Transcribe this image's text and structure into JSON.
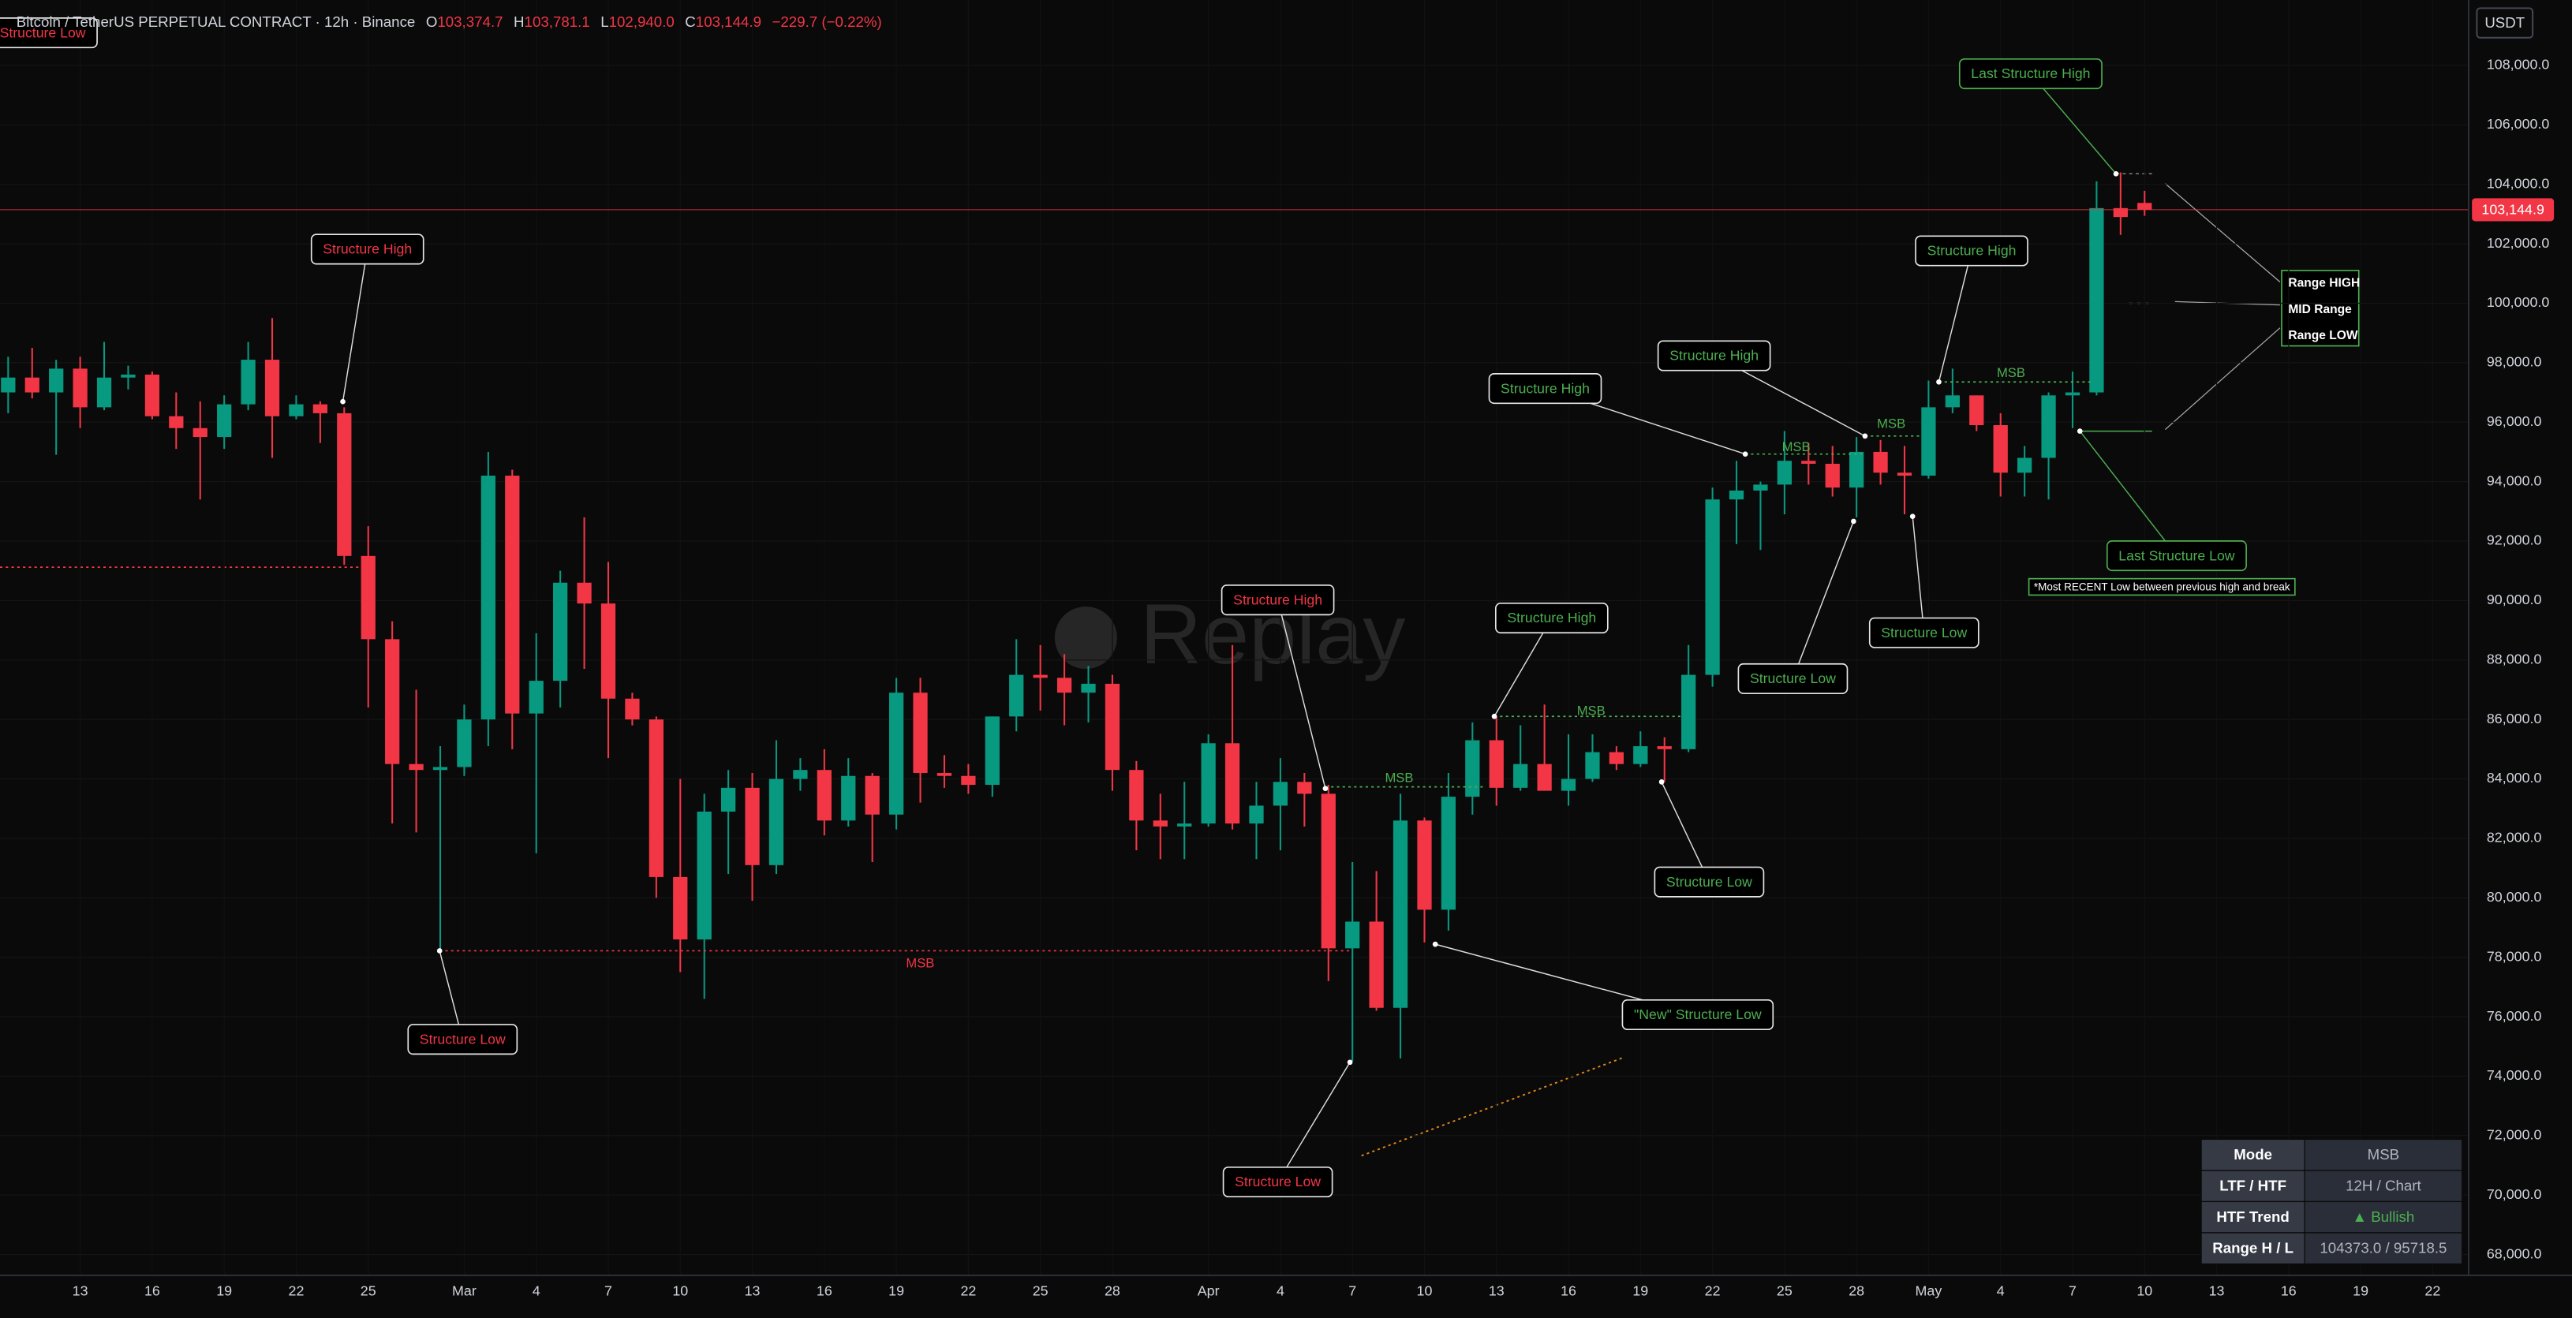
{
  "header": {
    "symbol": "Bitcoin / TetherUS PERPETUAL CONTRACT · 12h · Binance",
    "o_key": "O",
    "o": "103,374.7",
    "h_key": "H",
    "h": "103,781.1",
    "l_key": "L",
    "l": "102,940.0",
    "c_key": "C",
    "c": "103,144.9",
    "change": "−229.7 (−0.22%)"
  },
  "currency": "USDT",
  "watermark": "Replay",
  "chart_data": {
    "type": "candlestick",
    "up_color": "#089981",
    "down_color": "#f23645",
    "candles": [
      [
        97000,
        98200,
        96300,
        97500
      ],
      [
        97500,
        98500,
        96800,
        97000
      ],
      [
        97000,
        98100,
        94900,
        97800
      ],
      [
        97800,
        98200,
        95800,
        96500
      ],
      [
        96500,
        98700,
        96400,
        97500
      ],
      [
        97500,
        97900,
        97100,
        97600
      ],
      [
        97600,
        97700,
        96100,
        96200
      ],
      [
        96200,
        97000,
        95100,
        95800
      ],
      [
        95800,
        96700,
        93400,
        95500
      ],
      [
        95500,
        96900,
        95100,
        96600
      ],
      [
        96600,
        98700,
        96400,
        98100
      ],
      [
        98100,
        99500,
        94800,
        96200
      ],
      [
        96200,
        96900,
        96100,
        96600
      ],
      [
        96600,
        96700,
        95300,
        96300
      ],
      [
        96300,
        96500,
        91200,
        91500
      ],
      [
        91500,
        92500,
        86400,
        88700
      ],
      [
        88700,
        89300,
        82500,
        84500
      ],
      [
        84500,
        87000,
        82200,
        84300
      ],
      [
        84300,
        85100,
        78200,
        84400
      ],
      [
        84400,
        86500,
        84100,
        86000
      ],
      [
        86000,
        95000,
        85100,
        94200
      ],
      [
        94200,
        94400,
        85000,
        86200
      ],
      [
        86200,
        88900,
        81500,
        87300
      ],
      [
        87300,
        91000,
        86400,
        90600
      ],
      [
        90600,
        92800,
        87700,
        89900
      ],
      [
        89900,
        91300,
        84700,
        86700
      ],
      [
        86700,
        86900,
        85800,
        86000
      ],
      [
        86000,
        86100,
        80000,
        80700
      ],
      [
        80700,
        84000,
        77500,
        78600
      ],
      [
        78600,
        83500,
        76600,
        82900
      ],
      [
        82900,
        84300,
        80800,
        83700
      ],
      [
        83700,
        84200,
        79900,
        81100
      ],
      [
        81100,
        85300,
        80800,
        84000
      ],
      [
        84000,
        84700,
        83600,
        84300
      ],
      [
        84300,
        85000,
        82100,
        82600
      ],
      [
        82600,
        84700,
        82400,
        84100
      ],
      [
        84100,
        84200,
        81200,
        82800
      ],
      [
        82800,
        87400,
        82300,
        86900
      ],
      [
        86900,
        87400,
        83200,
        84200
      ],
      [
        84200,
        84800,
        83700,
        84100
      ],
      [
        84100,
        84500,
        83500,
        83800
      ],
      [
        83800,
        86100,
        83400,
        86100
      ],
      [
        86100,
        88700,
        85600,
        87500
      ],
      [
        87500,
        88500,
        86300,
        87400
      ],
      [
        87400,
        88200,
        85800,
        86900
      ],
      [
        86900,
        87800,
        85900,
        87200
      ],
      [
        87200,
        87500,
        83600,
        84300
      ],
      [
        84300,
        84600,
        81600,
        82600
      ],
      [
        82600,
        83500,
        81300,
        82400
      ],
      [
        82400,
        83900,
        81300,
        82500
      ],
      [
        82500,
        85500,
        82400,
        85200
      ],
      [
        85200,
        88500,
        82300,
        82500
      ],
      [
        82500,
        83900,
        81300,
        83100
      ],
      [
        83100,
        84700,
        81600,
        83900
      ],
      [
        83900,
        84200,
        82400,
        83500
      ],
      [
        83500,
        83800,
        77200,
        78300
      ],
      [
        78300,
        81200,
        74500,
        79200
      ],
      [
        79200,
        80900,
        76200,
        76300
      ],
      [
        76300,
        83500,
        74600,
        82600
      ],
      [
        82600,
        82700,
        78500,
        79600
      ],
      [
        79600,
        84200,
        78900,
        83400
      ],
      [
        83400,
        85900,
        82800,
        85300
      ],
      [
        85300,
        86100,
        83100,
        83700
      ],
      [
        83700,
        85800,
        83600,
        84500
      ],
      [
        84500,
        86500,
        83600,
        83600
      ],
      [
        83600,
        85500,
        83100,
        84000
      ],
      [
        84000,
        85500,
        83900,
        84900
      ],
      [
        84900,
        85100,
        84300,
        84500
      ],
      [
        84500,
        85600,
        84400,
        85100
      ],
      [
        85100,
        85400,
        83900,
        85000
      ],
      [
        85000,
        88500,
        84900,
        87500
      ],
      [
        87500,
        93800,
        87100,
        93400
      ],
      [
        93400,
        94700,
        91900,
        93700
      ],
      [
        93700,
        94000,
        91700,
        93900
      ],
      [
        93900,
        95700,
        92900,
        94700
      ],
      [
        94700,
        95300,
        93900,
        94600
      ],
      [
        94600,
        95200,
        93500,
        93800
      ],
      [
        93800,
        95500,
        92800,
        95000
      ],
      [
        95000,
        95400,
        93900,
        94300
      ],
      [
        94300,
        95200,
        92900,
        94200
      ],
      [
        94200,
        97400,
        94100,
        96500
      ],
      [
        96500,
        97800,
        96300,
        96900
      ],
      [
        96900,
        96900,
        95700,
        95900
      ],
      [
        95900,
        96300,
        93500,
        94300
      ],
      [
        94300,
        95200,
        93500,
        94800
      ],
      [
        94800,
        97000,
        93400,
        96900
      ],
      [
        96900,
        97700,
        95800,
        97000
      ],
      [
        97000,
        104100,
        96900,
        103200
      ],
      [
        103200,
        104400,
        102300,
        102900
      ],
      [
        103374.7,
        103781.1,
        102940,
        103144.9
      ]
    ],
    "xlim": [
      -0.34,
      102.5
    ],
    "xticks": [
      {
        "value": 3,
        "label": "13"
      },
      {
        "value": 6,
        "label": "16"
      },
      {
        "value": 9,
        "label": "19"
      },
      {
        "value": 12,
        "label": "22"
      },
      {
        "value": 15,
        "label": "25"
      },
      {
        "value": 19,
        "label": "Mar"
      },
      {
        "value": 22,
        "label": "4"
      },
      {
        "value": 25,
        "label": "7"
      },
      {
        "value": 28,
        "label": "10"
      },
      {
        "value": 31,
        "label": "13"
      },
      {
        "value": 34,
        "label": "16"
      },
      {
        "value": 37,
        "label": "19"
      },
      {
        "value": 40,
        "label": "22"
      },
      {
        "value": 43,
        "label": "25"
      },
      {
        "value": 46,
        "label": "28"
      },
      {
        "value": 50,
        "label": "Apr"
      },
      {
        "value": 53,
        "label": "4"
      },
      {
        "value": 56,
        "label": "7"
      },
      {
        "value": 59,
        "label": "10"
      },
      {
        "value": 62,
        "label": "13"
      },
      {
        "value": 65,
        "label": "16"
      },
      {
        "value": 68,
        "label": "19"
      },
      {
        "value": 71,
        "label": "22"
      },
      {
        "value": 74,
        "label": "25"
      },
      {
        "value": 77,
        "label": "28"
      },
      {
        "value": 80,
        "label": "May"
      },
      {
        "value": 83,
        "label": "4"
      },
      {
        "value": 86,
        "label": "7"
      },
      {
        "value": 89,
        "label": "10"
      },
      {
        "value": 92,
        "label": "13"
      },
      {
        "value": 95,
        "label": "16"
      },
      {
        "value": 98,
        "label": "19"
      },
      {
        "value": 101,
        "label": "22"
      }
    ],
    "ylim": [
      67300,
      110200
    ],
    "yticks": [
      {
        "value": 68000,
        "label": "68,000.0"
      },
      {
        "value": 70000,
        "label": "70,000.0"
      },
      {
        "value": 72000,
        "label": "72,000.0"
      },
      {
        "value": 74000,
        "label": "74,000.0"
      },
      {
        "value": 76000,
        "label": "76,000.0"
      },
      {
        "value": 78000,
        "label": "78,000.0"
      },
      {
        "value": 80000,
        "label": "80,000.0"
      },
      {
        "value": 82000,
        "label": "82,000.0"
      },
      {
        "value": 84000,
        "label": "84,000.0"
      },
      {
        "value": 86000,
        "label": "86,000.0"
      },
      {
        "value": 88000,
        "label": "88,000.0"
      },
      {
        "value": 90000,
        "label": "90,000.0"
      },
      {
        "value": 92000,
        "label": "92,000.0"
      },
      {
        "value": 94000,
        "label": "94,000.0"
      },
      {
        "value": 96000,
        "label": "96,000.0"
      },
      {
        "value": 98000,
        "label": "98,000.0"
      },
      {
        "value": 100000,
        "label": "100,000.0"
      },
      {
        "value": 102000,
        "label": "102,000.0"
      },
      {
        "value": 104000,
        "label": "104,000.0"
      },
      {
        "value": 106000,
        "label": "106,000.0"
      },
      {
        "value": 108000,
        "label": "108,000.0"
      }
    ],
    "grid": true,
    "last_price": 103144.9,
    "last_price_label": "103,144.9",
    "annotations": [
      {
        "text": "Structure Low",
        "color": "#f23645"
      },
      {
        "text": "Structure High",
        "color": "#f23645"
      },
      {
        "text": "Structure Low",
        "color": "#f23645"
      },
      {
        "text": "Structure High",
        "color": "#f23645"
      },
      {
        "text": "Structure Low",
        "color": "#f23645"
      },
      {
        "text": "Structure High",
        "color": "#4caf50"
      },
      {
        "text": "Structure Low",
        "color": "#4caf50"
      },
      {
        "text": "\"New\" Structure Low",
        "color": "#4caf50"
      },
      {
        "text": "Structure High",
        "color": "#4caf50"
      },
      {
        "text": "Structure High",
        "color": "#4caf50"
      },
      {
        "text": "Structure Low",
        "color": "#4caf50"
      },
      {
        "text": "Structure High",
        "color": "#4caf50"
      },
      {
        "text": "Structure Low",
        "color": "#4caf50"
      },
      {
        "text": "Last Structure High",
        "color": "#4caf50"
      },
      {
        "text": "Last Structure Low",
        "color": "#4caf50"
      },
      {
        "text": "*Most RECENT Low between previous high and break",
        "color": "#ffffff"
      }
    ],
    "msb_labels": [
      {
        "text": "MSB",
        "color": "#f23645"
      },
      {
        "text": "MSB",
        "color": "#4caf50"
      },
      {
        "text": "MSB",
        "color": "#4caf50"
      },
      {
        "text": "MSB",
        "color": "#4caf50"
      },
      {
        "text": "MSB",
        "color": "#4caf50"
      },
      {
        "text": "MSB",
        "color": "#4caf50"
      }
    ],
    "range_labels": [
      "Range HIGH",
      "MID Range",
      "Range LOW"
    ]
  },
  "table": {
    "rows": [
      [
        "Mode",
        "MSB"
      ],
      [
        "LTF / HTF",
        "12H / Chart"
      ],
      [
        "HTF Trend",
        "▲ Bullish"
      ],
      [
        "Range H / L",
        "104373.0 / 95718.5"
      ]
    ],
    "trend_color": "#4caf50"
  }
}
